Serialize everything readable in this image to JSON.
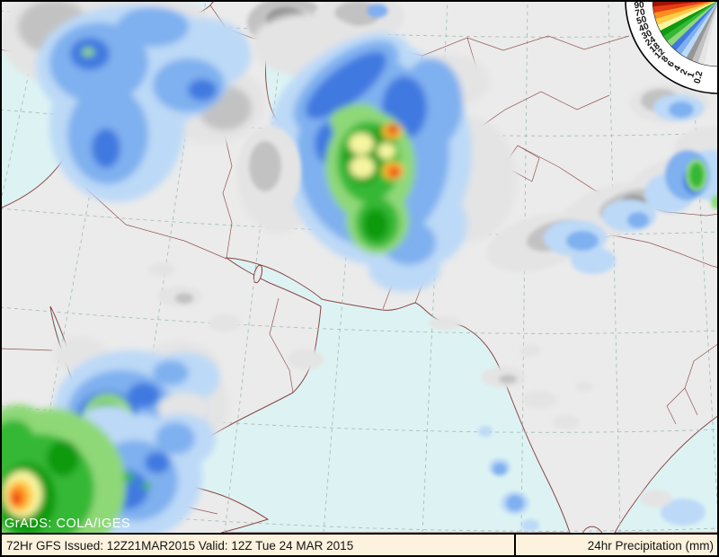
{
  "statusbar": {
    "left_text": "72Hr GFS Issued: 12Z21MAR2015 Valid: 12Z Tue 24 MAR 2015",
    "right_text": "24hr Precipitation (mm)"
  },
  "watermark": "GrADS: COLA/IGES",
  "legend": {
    "unit": "mm",
    "labels_ascending": [
      "0.2",
      "1",
      "2",
      "4",
      "6",
      "8",
      "12",
      "18",
      "24",
      "30",
      "40",
      "50",
      "70",
      "90"
    ],
    "band_colors_ascending": [
      "#e4e4e4",
      "#c2c2c2",
      "#969696",
      "#bcd9f7",
      "#7fb0ef",
      "#3f79e0",
      "#8fd878",
      "#35b835",
      "#0f9a10",
      "#f8f5a0",
      "#ffcc44",
      "#ff8c1e",
      "#e63c14",
      "#9e1208"
    ],
    "trace_band_color": "#efefef"
  },
  "map_colors": {
    "ocean": "#ddf3f3",
    "land": "#ebebeb",
    "coastline": "#8b4545",
    "graticule": "#a4bcb2",
    "statusbar_bg": "#fcf2dd"
  }
}
